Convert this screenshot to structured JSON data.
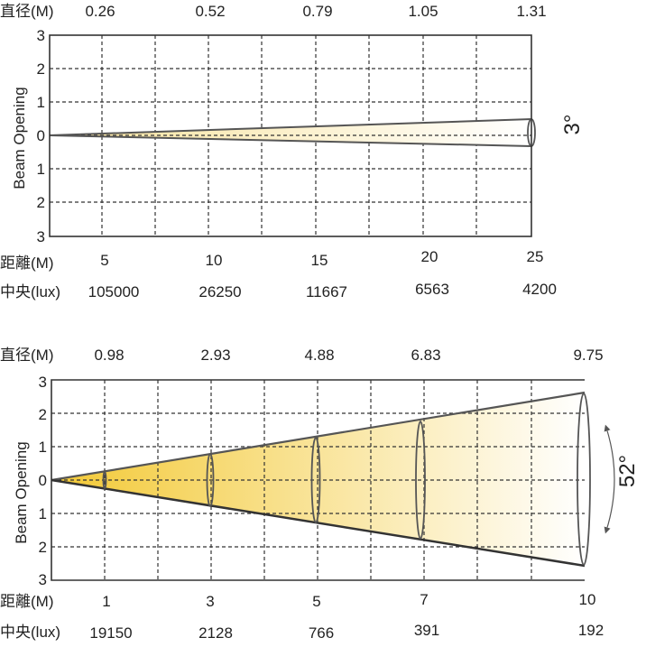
{
  "panels": [
    {
      "id": "narrow",
      "top_title": "直径(M)",
      "top_values": [
        "0.26",
        "0.52",
        "0.79",
        "1.05",
        "1.31"
      ],
      "y_axis_label": "Beam Opening",
      "y_ticks": [
        "3",
        "2",
        "1",
        "0",
        "1",
        "2",
        "3"
      ],
      "angle_label": "3°",
      "distance_title": "距離(M)",
      "distances": [
        "5",
        "10",
        "15",
        "20",
        "25"
      ],
      "lux_title": "中央(lux)",
      "lux_values": [
        "105000",
        "26250",
        "11667",
        "6563",
        "4200"
      ],
      "beam_half_opening_at_end": 0.3,
      "ellipse_positions": [
        25
      ],
      "distance_max": 25,
      "gradient": [
        "#f8e29a",
        "#ffffff"
      ],
      "colors": {
        "edge": "#555555",
        "grid": "#333333",
        "frame": "#333333"
      }
    },
    {
      "id": "wide",
      "top_title": "直径(M)",
      "top_values": [
        "0.98",
        "2.93",
        "4.88",
        "6.83",
        "9.75"
      ],
      "y_axis_label": "Beam Opening",
      "y_ticks": [
        "3",
        "2",
        "1",
        "0",
        "1",
        "2",
        "3"
      ],
      "angle_label": "52°",
      "distance_title": "距離(M)",
      "distances": [
        "1",
        "3",
        "5",
        "7",
        "10"
      ],
      "lux_title": "中央(lux)",
      "lux_values": [
        "19150",
        "2128",
        "766",
        "391",
        "192"
      ],
      "beam_half_opening_at_end": 2.6,
      "ellipse_positions": [
        1,
        3,
        5,
        7,
        10
      ],
      "distance_max": 10,
      "gradient": [
        "#f3c935",
        "#ffffff"
      ],
      "colors": {
        "edge": "#555555",
        "grid": "#333333",
        "frame": "#333333"
      }
    }
  ]
}
